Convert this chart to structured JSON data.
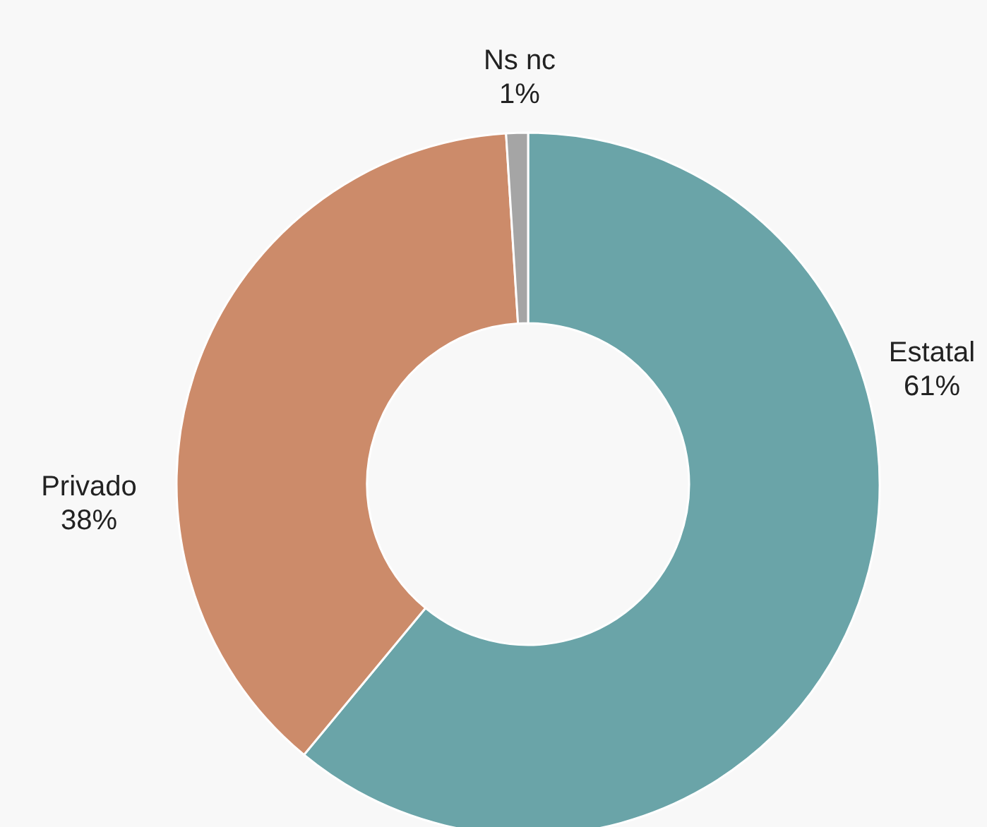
{
  "chart_data": {
    "type": "donut",
    "categories": [
      "Estatal",
      "Privado",
      "Ns nc"
    ],
    "values": [
      61,
      38,
      1
    ],
    "colors": [
      "#6aa4a8",
      "#cc8b6a",
      "#a5a5a5"
    ],
    "value_labels": [
      "61%",
      "38%",
      "1%"
    ]
  }
}
